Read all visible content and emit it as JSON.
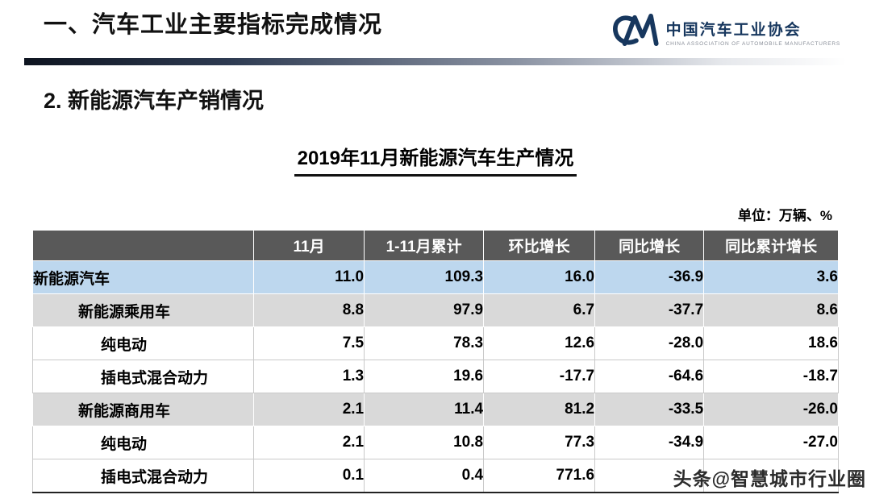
{
  "header": {
    "title": "一、汽车工业主要指标完成情况",
    "logo": {
      "org_name": "中国汽车工业协会",
      "org_subtitle": "CHINA ASSOCIATION OF AUTOMOBILE MANUFACTURERS"
    }
  },
  "section_title": "2. 新能源汽车产销情况",
  "table_title": "2019年11月新能源汽车生产情况",
  "unit_note": "单位：万辆、%",
  "table": {
    "columns": [
      "",
      "11月",
      "1-11月累计",
      "环比增长",
      "同比增长",
      "同比累计增长"
    ],
    "rows": [
      {
        "label": "新能源汽车",
        "values": [
          "11.0",
          "109.3",
          "16.0",
          "-36.9",
          "3.6"
        ],
        "style": "highlight",
        "indent": 0
      },
      {
        "label": "新能源乘用车",
        "values": [
          "8.8",
          "97.9",
          "6.7",
          "-37.7",
          "8.6"
        ],
        "style": "gray",
        "indent": 1
      },
      {
        "label": "纯电动",
        "values": [
          "7.5",
          "78.3",
          "12.6",
          "-28.0",
          "18.6"
        ],
        "style": "white",
        "indent": 2
      },
      {
        "label": "插电式混合动力",
        "values": [
          "1.3",
          "19.6",
          "-17.7",
          "-64.6",
          "-18.7"
        ],
        "style": "white",
        "indent": 2
      },
      {
        "label": "新能源商用车",
        "values": [
          "2.1",
          "11.4",
          "81.2",
          "-33.5",
          "-26.0"
        ],
        "style": "gray",
        "indent": 1
      },
      {
        "label": "纯电动",
        "values": [
          "2.1",
          "10.8",
          "77.3",
          "-34.9",
          "-27.0"
        ],
        "style": "white",
        "indent": 2
      },
      {
        "label": "插电式混合动力",
        "values": [
          "0.1",
          "0.4",
          "771.6",
          "",
          ""
        ],
        "style": "white",
        "indent": 2
      }
    ]
  },
  "watermark": "头条@智慧城市行业圈",
  "colors": {
    "header_row_bg": "#595959",
    "header_row_text": "#FFFFFF",
    "highlight_row_bg": "#BDD7EE",
    "alt_row_bg": "#D9D9D9",
    "accent_navy": "#17375E"
  }
}
